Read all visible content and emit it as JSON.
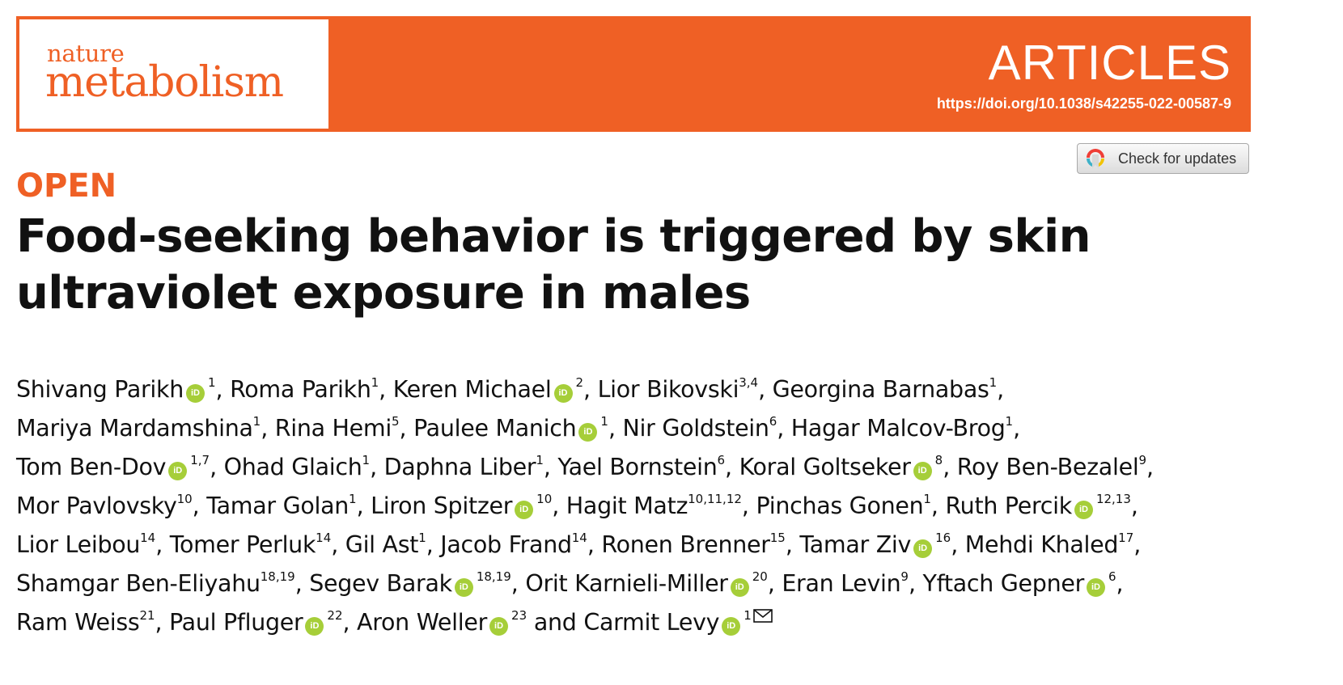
{
  "header": {
    "logo_line1": "nature",
    "logo_line2": "metabolism",
    "section": "ARTICLES",
    "doi": "https://doi.org/10.1038/s42255-022-00587-9",
    "brand_color": "#ef6025"
  },
  "check_updates": {
    "label": "Check for updates"
  },
  "open_label": "OPEN",
  "title": "Food-seeking behavior is triggered by skin ultraviolet exposure in males",
  "orcid_badge": {
    "icon": "orcid-icon",
    "text": "iD",
    "color": "#a6ce39"
  },
  "correspondence_icon": "envelope-icon",
  "authors": [
    {
      "name": "Shivang Parikh",
      "orcid": true,
      "aff": "1"
    },
    {
      "name": "Roma Parikh",
      "orcid": false,
      "aff": "1"
    },
    {
      "name": "Keren Michael",
      "orcid": true,
      "aff": "2"
    },
    {
      "name": "Lior Bikovski",
      "orcid": false,
      "aff": "3,4"
    },
    {
      "name": "Georgina Barnabas",
      "orcid": false,
      "aff": "1"
    },
    {
      "name": "Mariya Mardamshina",
      "orcid": false,
      "aff": "1"
    },
    {
      "name": "Rina Hemi",
      "orcid": false,
      "aff": "5"
    },
    {
      "name": "Paulee Manich",
      "orcid": true,
      "aff": "1"
    },
    {
      "name": "Nir Goldstein",
      "orcid": false,
      "aff": "6"
    },
    {
      "name": "Hagar Malcov-Brog",
      "orcid": false,
      "aff": "1"
    },
    {
      "name": "Tom Ben-Dov",
      "orcid": true,
      "aff": "1,7"
    },
    {
      "name": "Ohad Glaich",
      "orcid": false,
      "aff": "1"
    },
    {
      "name": "Daphna Liber",
      "orcid": false,
      "aff": "1"
    },
    {
      "name": "Yael Bornstein",
      "orcid": false,
      "aff": "6"
    },
    {
      "name": "Koral Goltseker",
      "orcid": true,
      "aff": "8"
    },
    {
      "name": "Roy Ben-Bezalel",
      "orcid": false,
      "aff": "9"
    },
    {
      "name": "Mor Pavlovsky",
      "orcid": false,
      "aff": "10"
    },
    {
      "name": "Tamar Golan",
      "orcid": false,
      "aff": "1"
    },
    {
      "name": "Liron Spitzer",
      "orcid": true,
      "aff": "10"
    },
    {
      "name": "Hagit Matz",
      "orcid": false,
      "aff": "10,11,12"
    },
    {
      "name": "Pinchas Gonen",
      "orcid": false,
      "aff": "1"
    },
    {
      "name": "Ruth Percik",
      "orcid": true,
      "aff": "12,13"
    },
    {
      "name": "Lior Leibou",
      "orcid": false,
      "aff": "14"
    },
    {
      "name": "Tomer Perluk",
      "orcid": false,
      "aff": "14"
    },
    {
      "name": "Gil Ast",
      "orcid": false,
      "aff": "1"
    },
    {
      "name": "Jacob Frand",
      "orcid": false,
      "aff": "14"
    },
    {
      "name": "Ronen Brenner",
      "orcid": false,
      "aff": "15"
    },
    {
      "name": "Tamar Ziv",
      "orcid": true,
      "aff": "16"
    },
    {
      "name": "Mehdi Khaled",
      "orcid": false,
      "aff": "17"
    },
    {
      "name": "Shamgar Ben-Eliyahu",
      "orcid": false,
      "aff": "18,19"
    },
    {
      "name": "Segev Barak",
      "orcid": true,
      "aff": "18,19"
    },
    {
      "name": "Orit Karnieli-Miller",
      "orcid": true,
      "aff": "20"
    },
    {
      "name": "Eran Levin",
      "orcid": false,
      "aff": "9"
    },
    {
      "name": "Yftach Gepner",
      "orcid": true,
      "aff": "6"
    },
    {
      "name": "Ram Weiss",
      "orcid": false,
      "aff": "21"
    },
    {
      "name": "Paul Pfluger",
      "orcid": true,
      "aff": "22"
    },
    {
      "name": "Aron Weller",
      "orcid": true,
      "aff": "23"
    },
    {
      "name": "Carmit Levy",
      "orcid": true,
      "aff": "1",
      "corresponding": true
    }
  ],
  "author_separator": ", ",
  "author_last_join": " and "
}
